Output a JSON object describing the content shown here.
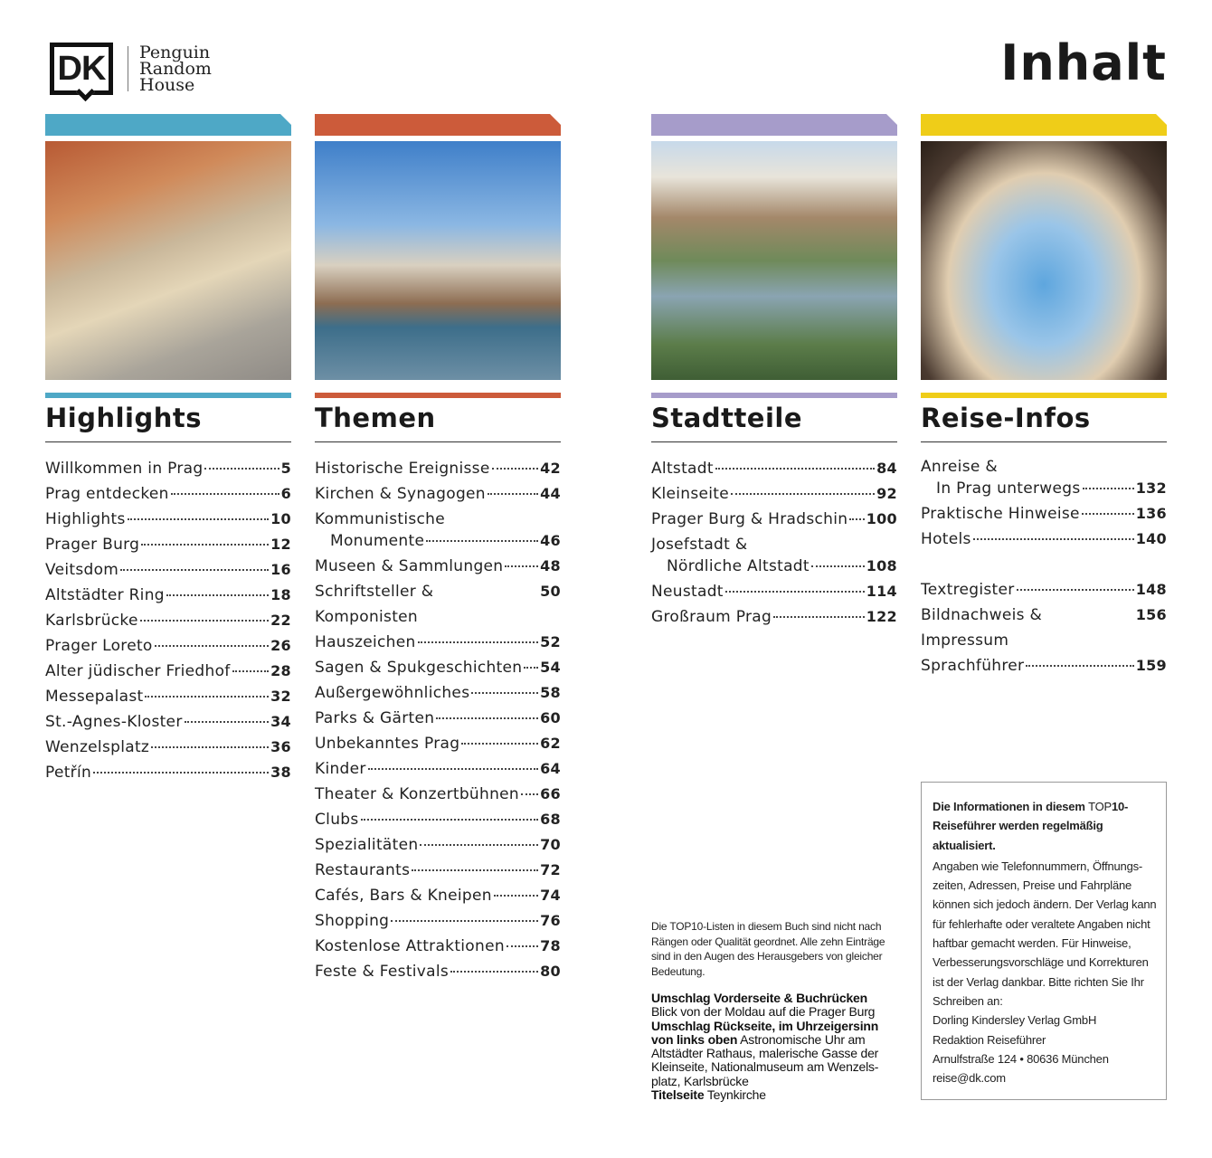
{
  "logo": {
    "dk": "DK",
    "publisher_lines": [
      "Penguin",
      "Random",
      "House"
    ]
  },
  "title": "Inhalt",
  "columns": [
    {
      "heading": "Highlights",
      "color": "#4ea8c6",
      "photo": "Aerial view of Old Town rooftops",
      "entries": [
        {
          "lines": [
            "Willkommen in Prag"
          ],
          "page": "5"
        },
        {
          "lines": [
            "Prag entdecken"
          ],
          "page": "6"
        },
        {
          "lines": [
            "Highlights"
          ],
          "page": "10"
        },
        {
          "lines": [
            "Prager Burg"
          ],
          "page": "12"
        },
        {
          "lines": [
            "Veitsdom"
          ],
          "page": "16"
        },
        {
          "lines": [
            "Altstädter Ring"
          ],
          "page": "18"
        },
        {
          "lines": [
            "Karlsbrücke"
          ],
          "page": "22"
        },
        {
          "lines": [
            "Prager Loreto"
          ],
          "page": "26"
        },
        {
          "lines": [
            "Alter jüdischer Friedhof"
          ],
          "page": "28"
        },
        {
          "lines": [
            "Messepalast"
          ],
          "page": "32"
        },
        {
          "lines": [
            "St.-Agnes-Kloster"
          ],
          "page": "34"
        },
        {
          "lines": [
            "Wenzelsplatz"
          ],
          "page": "36"
        },
        {
          "lines": [
            "Petřín"
          ],
          "page": "38"
        }
      ]
    },
    {
      "heading": "Themen",
      "color": "#cc5b3a",
      "photo": "Old Town Bridge Tower by the river",
      "entries": [
        {
          "lines": [
            "Historische Ereignisse"
          ],
          "page": "42"
        },
        {
          "lines": [
            "Kirchen & Synagogen"
          ],
          "page": "44"
        },
        {
          "lines": [
            "Kommunistische",
            "Monumente"
          ],
          "page": "46"
        },
        {
          "lines": [
            "Museen & Sammlungen"
          ],
          "page": "48"
        },
        {
          "lines": [
            "Schriftsteller & Komponisten"
          ],
          "page": "50"
        },
        {
          "lines": [
            "Hauszeichen"
          ],
          "page": "52"
        },
        {
          "lines": [
            "Sagen & Spukgeschichten"
          ],
          "page": "54"
        },
        {
          "lines": [
            "Außergewöhnliches"
          ],
          "page": "58"
        },
        {
          "lines": [
            "Parks & Gärten"
          ],
          "page": "60"
        },
        {
          "lines": [
            "Unbekanntes Prag"
          ],
          "page": "62"
        },
        {
          "lines": [
            "Kinder"
          ],
          "page": "64"
        },
        {
          "lines": [
            "Theater & Konzertbühnen"
          ],
          "page": "66"
        },
        {
          "lines": [
            "Clubs"
          ],
          "page": "68"
        },
        {
          "lines": [
            "Spezialitäten"
          ],
          "page": "70"
        },
        {
          "lines": [
            "Restaurants"
          ],
          "page": "72"
        },
        {
          "lines": [
            "Cafés, Bars & Kneipen"
          ],
          "page": "74"
        },
        {
          "lines": [
            "Shopping"
          ],
          "page": "76"
        },
        {
          "lines": [
            "Kostenlose Attraktionen"
          ],
          "page": "78"
        },
        {
          "lines": [
            "Feste & Festivals"
          ],
          "page": "80"
        }
      ]
    },
    {
      "heading": "Stadtteile",
      "color": "#a69cca",
      "photo": "Vltava bridges panorama",
      "entries": [
        {
          "lines": [
            "Altstadt"
          ],
          "page": "84"
        },
        {
          "lines": [
            "Kleinseite"
          ],
          "page": "92"
        },
        {
          "lines": [
            "Prager Burg & Hradschin"
          ],
          "page": "100"
        },
        {
          "lines": [
            "Josefstadt &",
            "Nördliche Altstadt"
          ],
          "page": "108"
        },
        {
          "lines": [
            "Neustadt"
          ],
          "page": "114"
        },
        {
          "lines": [
            "Großraum Prag"
          ],
          "page": "122"
        }
      ]
    },
    {
      "heading": "Reise-Infos",
      "color": "#efcd18",
      "photo": "St. Nicholas Church through an archway",
      "entries": [
        {
          "lines": [
            "Anreise &",
            "In Prag unterwegs"
          ],
          "page": "132"
        },
        {
          "lines": [
            "Praktische Hinweise"
          ],
          "page": "136"
        },
        {
          "lines": [
            "Hotels"
          ],
          "page": "140"
        }
      ],
      "entries_2": [
        {
          "lines": [
            "Textregister"
          ],
          "page": "148"
        },
        {
          "lines": [
            "Bildnachweis & Impressum"
          ],
          "page": "156"
        },
        {
          "lines": [
            "Sprachführer"
          ],
          "page": "159"
        }
      ]
    }
  ],
  "note": "Die TOP10-Listen in diesem Buch sind nicht nach Rängen oder Qualität geordnet. Alle zehn Einträge sind in den Augen des Herausgebers von gleicher Bedeutung.",
  "cover": [
    {
      "label": "Umschlag Vorderseite & Buchrücken",
      "text": "Blick von der Moldau auf die Prager Burg"
    },
    {
      "label": "Umschlag Rückseite, im Uhrzeigersinn von links oben",
      "text": "Astronomische Uhr am Altstädter Rathaus, malerische Gasse der Kleinseite, Nationalmuseum am Wenzels-platz, Karlsbrücke"
    },
    {
      "label": "Titelseite",
      "text": "Teynkirche"
    }
  ],
  "infobox": {
    "head_a": "Die Informationen in diesem ",
    "head_top": "TOP",
    "head_b": "10-Reiseführer werden regelmäßig aktualisiert.",
    "body": "Angaben wie Telefonnummern, Öffnungs-zeiten, Adressen, Preise und Fahrpläne können sich jedoch ändern. Der Verlag kann für fehlerhafte oder veraltete Angaben nicht haftbar gemacht werden. Für Hinweise, Verbesserungsvorschläge und Korrekturen ist der Verlag dankbar. Bitte richten Sie Ihr Schreiben an:",
    "address": [
      "Dorling Kindersley Verlag GmbH",
      "Redaktion Reiseführer",
      "Arnulfstraße 124 • 80636 München",
      "reise@dk.com"
    ]
  }
}
